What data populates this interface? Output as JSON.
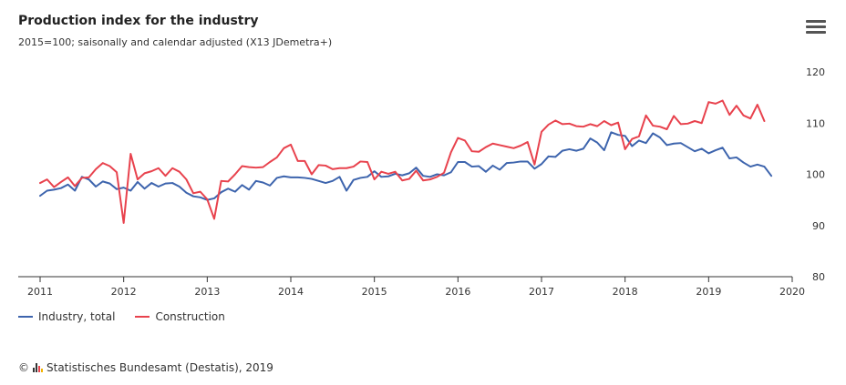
{
  "header": {
    "title": "Production index for the industry",
    "subtitle": "2015=100; saisonally and calendar adjusted (X13 JDemetra+)"
  },
  "menu_icon": "hamburger-menu-icon",
  "footer": {
    "copyright": "©",
    "source": "Statistisches Bundesamt (Destatis), 2019"
  },
  "colors": {
    "industry": "#3d64ad",
    "construction": "#e8424d",
    "axis": "#333333"
  },
  "chart_data": {
    "type": "line",
    "title": "Production index for the industry",
    "subtitle": "2015=100; saisonally and calendar adjusted (X13 JDemetra+)",
    "x_ticks": [
      "2011",
      "2012",
      "2013",
      "2014",
      "2015",
      "2016",
      "2017",
      "2018",
      "2019",
      "2020"
    ],
    "y_ticks": [
      80,
      90,
      100,
      110,
      120
    ],
    "ylim": [
      80,
      120
    ],
    "xlim": [
      "2011-01",
      "2020-01"
    ],
    "y_axis_position": "right",
    "grid": false,
    "legend_position": "bottom-left",
    "start": "2011-01",
    "frequency": "monthly",
    "series": [
      {
        "name": "Industry, total",
        "values": [
          95.8,
          96.8,
          97.0,
          97.3,
          98.0,
          96.8,
          99.5,
          99.0,
          97.6,
          98.6,
          98.2,
          97.1,
          97.4,
          96.8,
          98.5,
          97.2,
          98.3,
          97.6,
          98.2,
          98.3,
          97.6,
          96.4,
          95.7,
          95.5,
          95.0,
          95.3,
          96.5,
          97.2,
          96.6,
          97.9,
          97.0,
          98.7,
          98.4,
          97.8,
          99.3,
          99.6,
          99.4,
          99.4,
          99.3,
          99.1,
          98.7,
          98.3,
          98.7,
          99.5,
          96.8,
          98.9,
          99.3,
          99.5,
          100.6,
          99.5,
          99.6,
          100.1,
          99.8,
          100.2,
          101.3,
          99.7,
          99.5,
          100.0,
          99.8,
          100.4,
          102.4,
          102.4,
          101.5,
          101.6,
          100.5,
          101.7,
          100.9,
          102.2,
          102.3,
          102.5,
          102.5,
          101.1,
          102.0,
          103.5,
          103.4,
          104.6,
          104.9,
          104.6,
          105.0,
          107.0,
          106.2,
          104.7,
          108.2,
          107.7,
          107.5,
          105.5,
          106.6,
          106.1,
          108.0,
          107.2,
          105.7,
          106.0,
          106.1,
          105.3,
          104.5,
          105.0,
          104.1,
          104.7,
          105.2,
          103.1,
          103.3,
          102.3,
          101.5,
          101.9,
          101.5,
          99.7
        ]
      },
      {
        "name": "Construction",
        "values": [
          98.3,
          99.0,
          97.5,
          98.5,
          99.4,
          97.7,
          99.3,
          99.4,
          101.0,
          102.2,
          101.6,
          100.4,
          90.5,
          104.0,
          99.0,
          100.2,
          100.6,
          101.2,
          99.7,
          101.2,
          100.5,
          99.0,
          96.3,
          96.6,
          95.1,
          91.3,
          98.7,
          98.6,
          100.0,
          101.6,
          101.4,
          101.3,
          101.4,
          102.4,
          103.3,
          105.1,
          105.8,
          102.6,
          102.6,
          100.0,
          101.8,
          101.7,
          101.0,
          101.2,
          101.2,
          101.5,
          102.5,
          102.4,
          99.0,
          100.5,
          100.1,
          100.5,
          98.8,
          99.1,
          100.7,
          98.8,
          99.0,
          99.5,
          100.3,
          104.3,
          107.1,
          106.6,
          104.5,
          104.4,
          105.3,
          106.0,
          105.7,
          105.4,
          105.1,
          105.6,
          106.3,
          101.9,
          108.3,
          109.7,
          110.5,
          109.8,
          109.9,
          109.4,
          109.3,
          109.8,
          109.4,
          110.4,
          109.6,
          110.1,
          104.9,
          106.9,
          107.4,
          111.5,
          109.5,
          109.3,
          108.8,
          111.4,
          109.8,
          109.9,
          110.4,
          110.0,
          114.1,
          113.8,
          114.4,
          111.6,
          113.4,
          111.5,
          110.9,
          113.6,
          110.4
        ]
      }
    ]
  }
}
